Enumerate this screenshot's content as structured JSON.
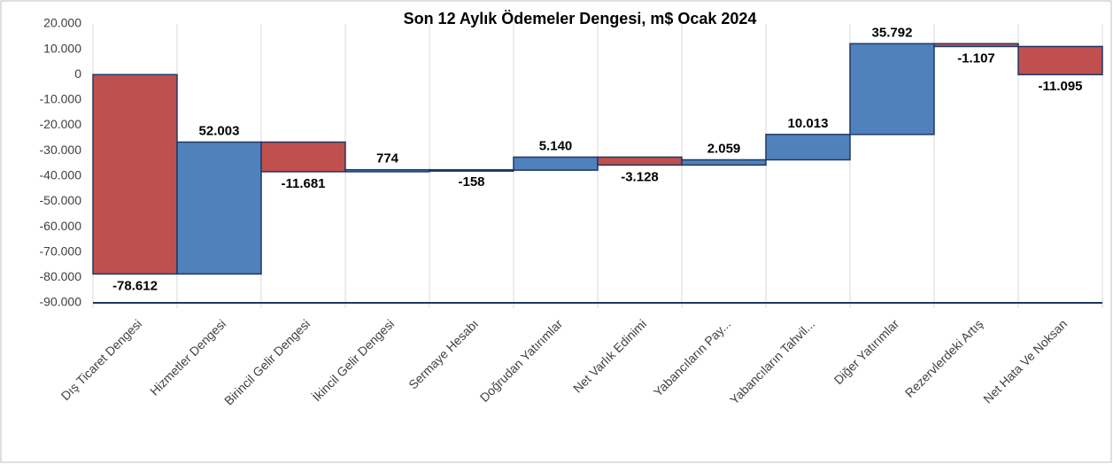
{
  "chart_data": {
    "type": "waterfall",
    "title": "Son 12 Aylık Ödemeler Dengesi, m$ Ocak 2024",
    "categories": [
      "Dış Ticaret Dengesi",
      "Hizmetler Dengesi",
      "Birincil Gelir Dengesi",
      "İkincil Gelir Dengesi",
      "Sermaye Hesabı",
      "Doğrudan Yatırımlar",
      "Net Varlık Edinimi",
      "Yabancıların Pay...",
      "Yabancıların Tahvil...",
      "Diğer Yatırımlar",
      "Rezervlerdeki Artış",
      "Net Hata Ve Noksan"
    ],
    "values": [
      -78612,
      52003,
      -11681,
      774,
      -158,
      5140,
      -3128,
      2059,
      10013,
      35792,
      -1107,
      -11095
    ],
    "value_labels": [
      "-78.612",
      "52.003",
      "-11.681",
      "774",
      "-158",
      "5.140",
      "-3.128",
      "2.059",
      "10.013",
      "35.792",
      "-1.107",
      "-11.095"
    ],
    "positive_color": "#4f81bd",
    "negative_color": "#c0504d",
    "ylim": [
      -90000,
      20000
    ],
    "yticks": [
      {
        "value": 20000,
        "label": "20.000"
      },
      {
        "value": 10000,
        "label": "10.000"
      },
      0,
      {
        "value": -10000,
        "label": "-10.000"
      },
      {
        "value": -20000,
        "label": "-20.000"
      },
      {
        "value": -30000,
        "label": "-30.000"
      },
      {
        "value": -40000,
        "label": "-40.000"
      },
      {
        "value": -50000,
        "label": "-50.000"
      },
      {
        "value": -60000,
        "label": "-60.000"
      },
      {
        "value": -70000,
        "label": "-70.000"
      },
      {
        "value": -80000,
        "label": "-80.000"
      },
      {
        "value": -90000,
        "label": "-90.000"
      }
    ]
  }
}
